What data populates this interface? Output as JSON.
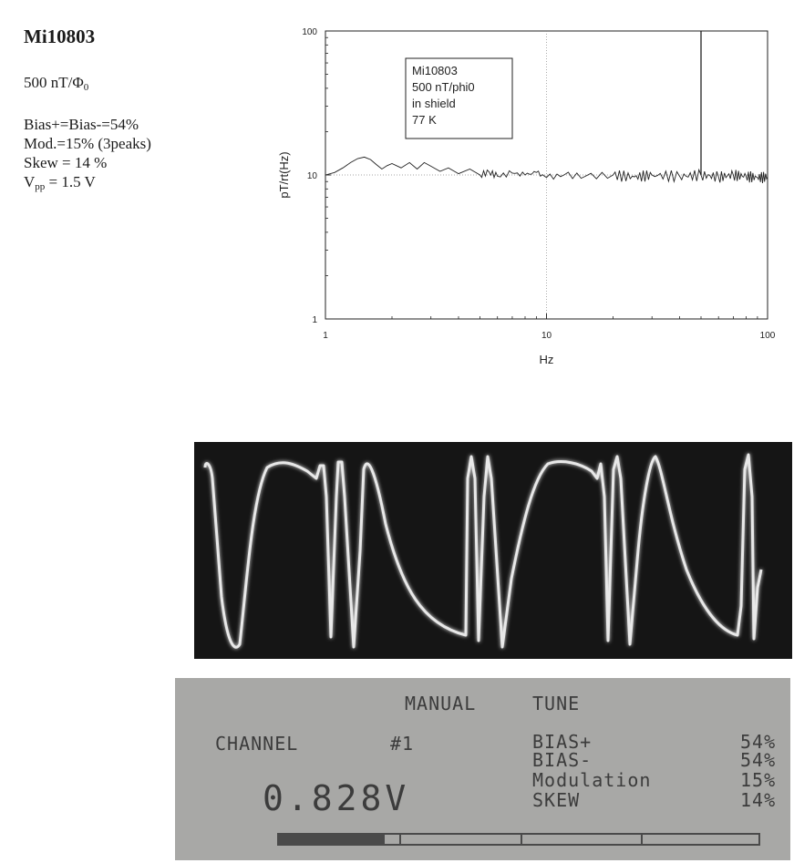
{
  "sensor": {
    "title": "Mi10803",
    "scale_prefix": "500 nT/Φ",
    "scale_sub": "0",
    "bias": "Bias+=Bias-=54%",
    "mod": "Mod.=15% (3peaks)",
    "skew": "Skew = 14 %",
    "vpp_prefix": "V",
    "vpp_sub": "pp",
    "vpp_value": " = 1.5 V"
  },
  "chart_data": {
    "type": "line",
    "title": "",
    "xlabel": "Hz",
    "ylabel": "pT/rt(Hz)",
    "x_scale": "log",
    "y_scale": "log",
    "xlim": [
      1,
      100
    ],
    "ylim": [
      1,
      100
    ],
    "x_ticks": [
      "1",
      "10",
      "100"
    ],
    "y_ticks": [
      "1",
      "10",
      "100"
    ],
    "grid": "dotted at 10 (x and y)",
    "legend": {
      "placement": "top-left",
      "lines": [
        "Mi10803",
        "500 nT/phi0",
        "in shield",
        "77 K"
      ]
    },
    "series": [
      {
        "x": [
          1.0,
          1.1,
          1.2,
          1.3,
          1.4,
          1.5,
          1.6,
          1.7,
          1.8,
          1.9,
          2.0,
          2.2,
          2.4,
          2.6,
          2.8,
          3.0,
          3.3,
          3.6,
          4.0,
          4.5,
          5.0,
          5.5,
          6.0,
          7.0,
          8.0,
          9.0,
          10,
          12,
          15,
          20,
          25,
          30,
          40,
          50,
          60,
          70,
          80,
          90,
          100
        ],
        "y": [
          10.0,
          10.4,
          11.2,
          12.2,
          13.0,
          13.3,
          12.8,
          11.8,
          11.0,
          11.6,
          12.0,
          11.2,
          12.2,
          11.0,
          12.2,
          11.5,
          10.6,
          11.2,
          10.2,
          11.0,
          10.0,
          10.5,
          9.8,
          10.3,
          10.0,
          10.4,
          9.6,
          10.0,
          9.8,
          10.0,
          9.7,
          10.0,
          9.8,
          10.0,
          9.7,
          10.0,
          9.8,
          9.6,
          9.7
        ]
      }
    ],
    "spike_at_hz": 50
  },
  "lcd": {
    "mode": "MANUAL",
    "tune": "TUNE",
    "channel_label": "CHANNEL",
    "channel_num": "#1",
    "voltage": "0.828V",
    "params": [
      {
        "name": "BIAS+",
        "value": "54%"
      },
      {
        "name": "BIAS-",
        "value": "54%"
      },
      {
        "name": "Modulation",
        "value": "15%"
      },
      {
        "name": "SKEW",
        "value": "14%"
      }
    ],
    "bar_fill": 0.22
  }
}
